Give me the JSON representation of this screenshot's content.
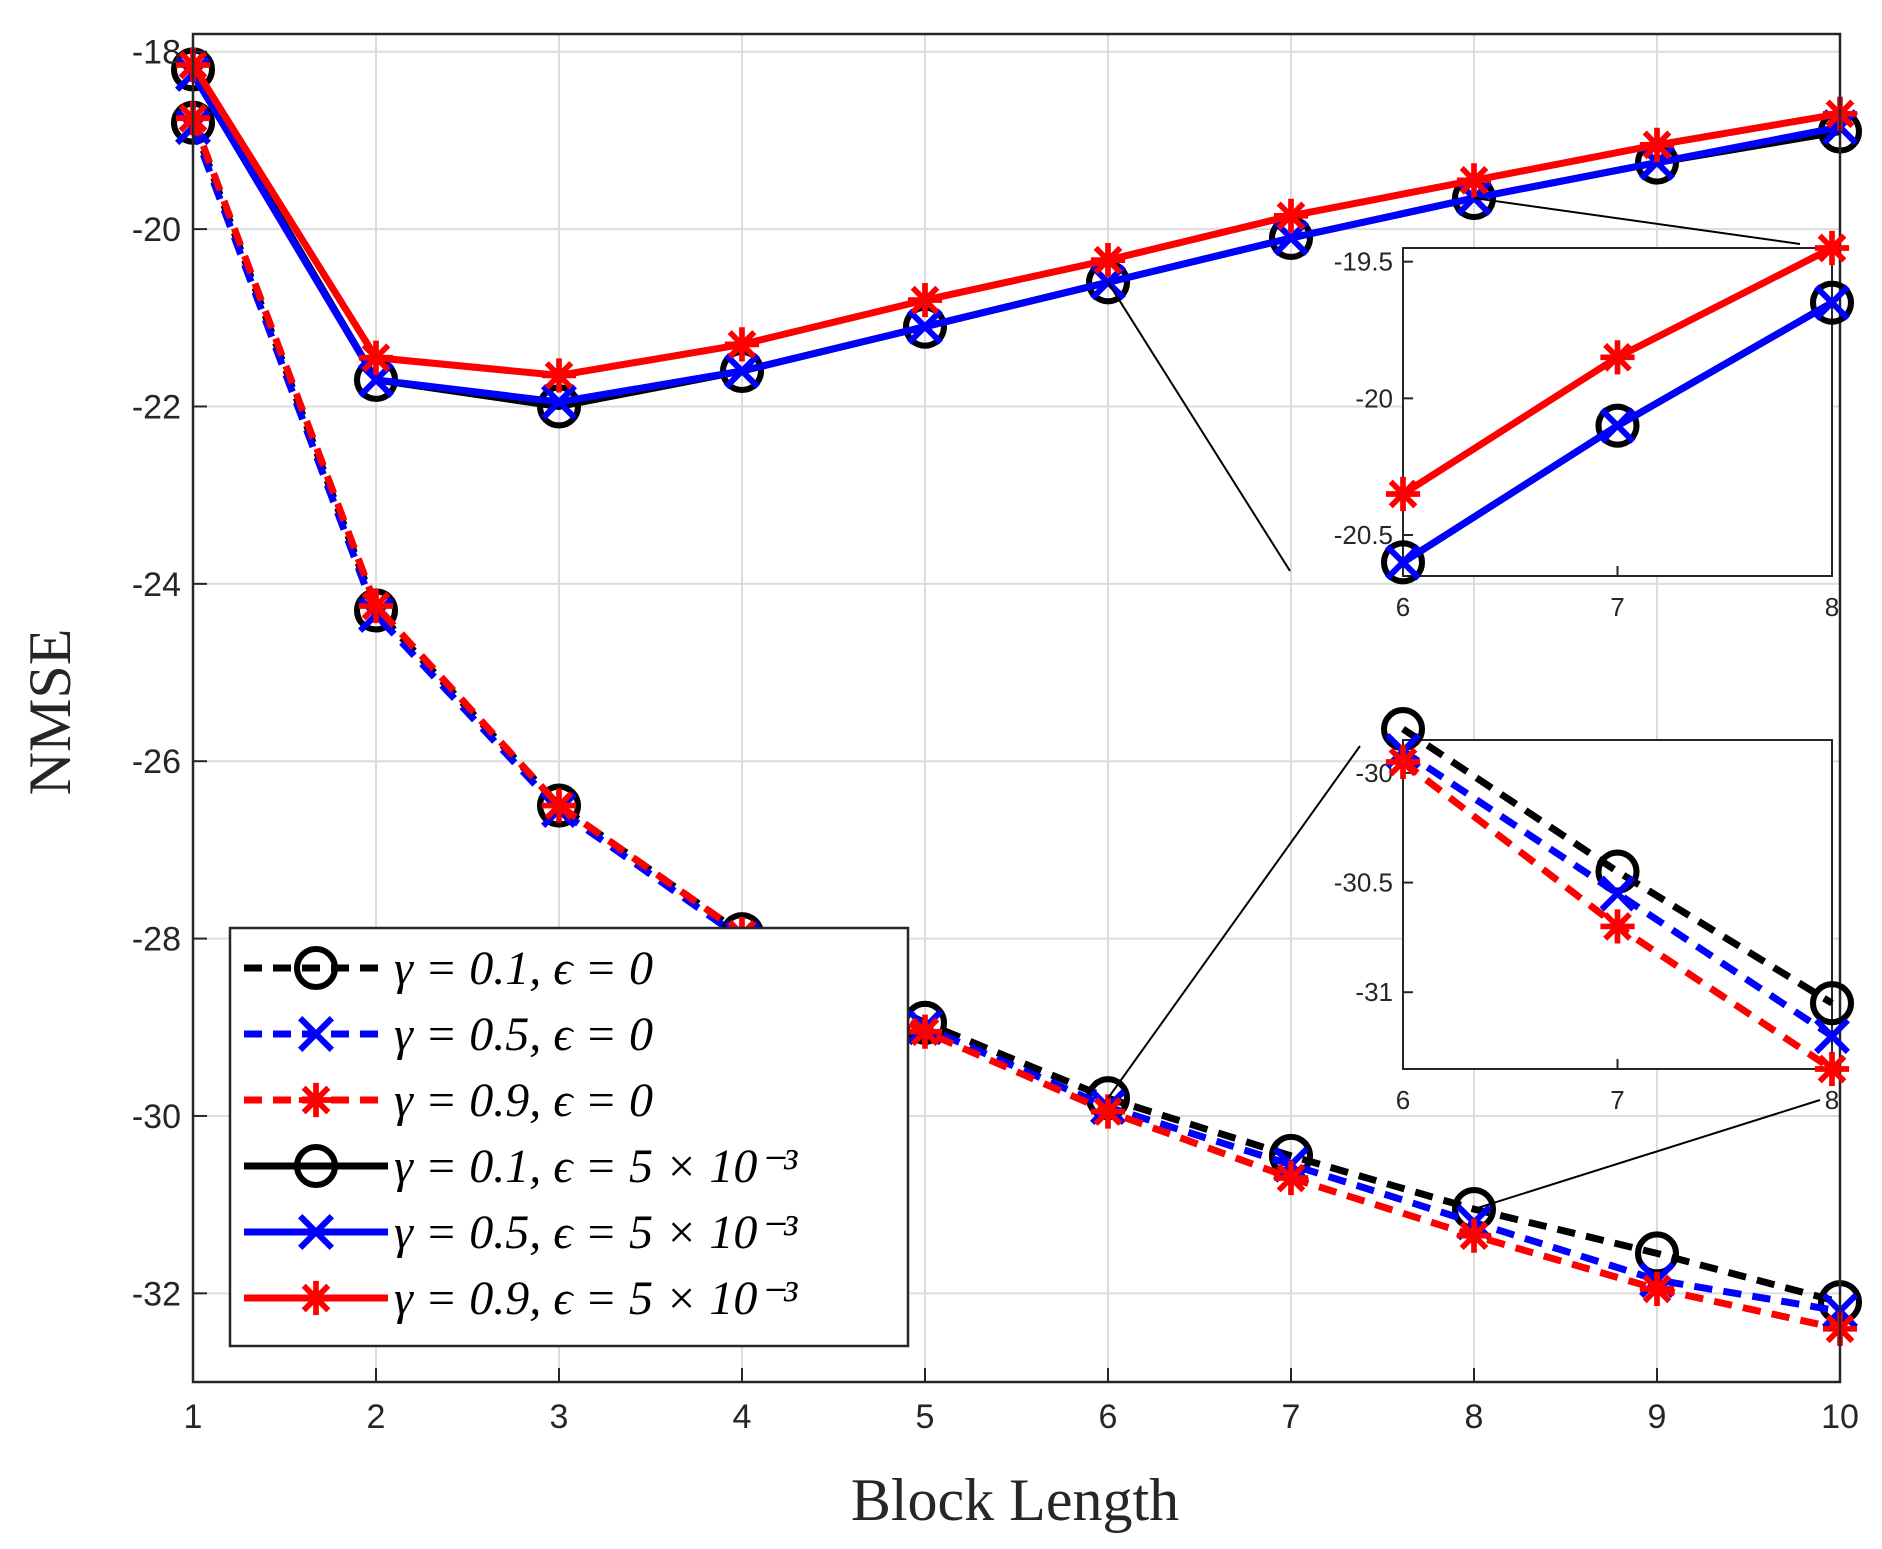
{
  "chart_data": {
    "type": "line",
    "title": "",
    "xlabel": "Block Length",
    "ylabel": "NMSE",
    "xlim": [
      1,
      10
    ],
    "ylim": [
      -33,
      -17.8
    ],
    "x_ticks": [
      1,
      2,
      3,
      4,
      5,
      6,
      7,
      8,
      9,
      10
    ],
    "y_ticks": [
      -32,
      -30,
      -28,
      -26,
      -24,
      -22,
      -20,
      -18
    ],
    "grid": true,
    "legend_position": "bottom-left",
    "x": [
      1,
      2,
      3,
      4,
      5,
      6,
      7,
      8,
      9,
      10
    ],
    "series": [
      {
        "name": "γ = 0.1, ϵ = 0",
        "color": "#000000",
        "style": "dashed",
        "marker": "circle",
        "values": [
          -18.8,
          -24.3,
          -26.5,
          -27.95,
          -28.95,
          -29.8,
          -30.45,
          -31.05,
          -31.55,
          -32.1
        ]
      },
      {
        "name": "γ = 0.5, ϵ = 0",
        "color": "#0000ff",
        "style": "dashed",
        "marker": "x",
        "values": [
          -18.85,
          -24.35,
          -26.55,
          -28.0,
          -29.0,
          -29.9,
          -30.55,
          -31.2,
          -31.85,
          -32.2
        ]
      },
      {
        "name": "γ = 0.9, ϵ = 0",
        "color": "#ff0000",
        "style": "dashed",
        "marker": "asterisk",
        "values": [
          -18.75,
          -24.25,
          -26.5,
          -27.95,
          -29.05,
          -29.95,
          -30.7,
          -31.35,
          -31.95,
          -32.4
        ]
      },
      {
        "name": "γ = 0.1, ϵ = 5 × 10⁻³",
        "color": "#000000",
        "style": "solid",
        "marker": "circle",
        "values": [
          -18.2,
          -21.7,
          -22.0,
          -21.6,
          -21.1,
          -20.6,
          -20.1,
          -19.65,
          -19.25,
          -18.9
        ]
      },
      {
        "name": "γ = 0.5, ϵ = 5 × 10⁻³",
        "color": "#0000ff",
        "style": "solid",
        "marker": "x",
        "values": [
          -18.25,
          -21.7,
          -21.95,
          -21.6,
          -21.1,
          -20.6,
          -20.1,
          -19.65,
          -19.25,
          -18.85
        ]
      },
      {
        "name": "γ = 0.9, ϵ = 5 × 10⁻³",
        "color": "#ff0000",
        "style": "solid",
        "marker": "asterisk",
        "values": [
          -18.15,
          -21.45,
          -21.65,
          -21.3,
          -20.8,
          -20.35,
          -19.85,
          -19.45,
          -19.05,
          -18.7
        ]
      }
    ],
    "insets": [
      {
        "name": "inset-upper",
        "xlim": [
          6,
          8
        ],
        "ylim": [
          -20.65,
          -19.45
        ],
        "x_ticks": [
          6,
          7,
          8
        ],
        "y_ticks": [
          -20.5,
          -20,
          -19.5
        ],
        "series_indices": [
          3,
          4,
          5
        ],
        "x_range": [
          6,
          8
        ]
      },
      {
        "name": "inset-lower",
        "xlim": [
          6,
          8
        ],
        "ylim": [
          -31.35,
          -29.85
        ],
        "x_ticks": [
          6,
          7,
          8
        ],
        "y_ticks": [
          -31,
          -30.5,
          -30
        ],
        "series_indices": [
          0,
          1,
          2
        ],
        "x_range": [
          6,
          8
        ]
      }
    ]
  }
}
